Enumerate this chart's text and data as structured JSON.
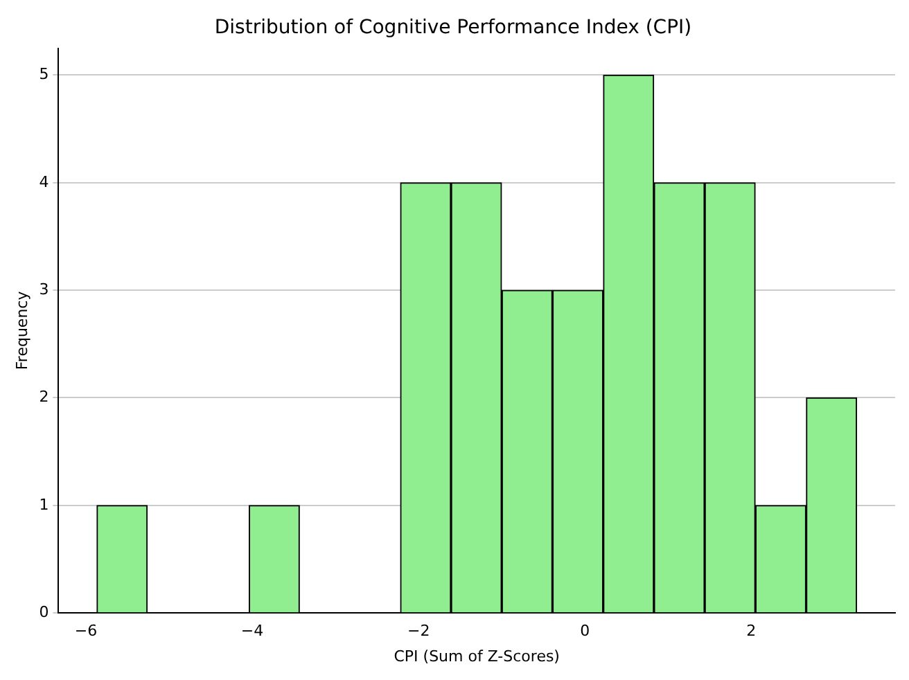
{
  "chart_data": {
    "type": "histogram",
    "title": "Distribution of Cognitive Performance Index (CPI)",
    "xlabel": "CPI (Sum of Z-Scores)",
    "ylabel": "Frequency",
    "bins": [
      -5.87,
      -5.26,
      -4.65,
      -4.04,
      -3.43,
      -2.83,
      -2.22,
      -1.61,
      -1.0,
      -0.39,
      0.22,
      0.83,
      1.44,
      2.05,
      2.66,
      3.27
    ],
    "values": [
      1,
      0,
      0,
      1,
      0,
      0,
      4,
      4,
      3,
      3,
      5,
      4,
      4,
      1,
      2
    ],
    "color": "#90ee90",
    "xlim": [
      -6.33,
      3.73
    ],
    "xticks": [
      {
        "value": -6,
        "label": "−6"
      },
      {
        "value": -4,
        "label": "−4"
      },
      {
        "value": -2,
        "label": "−2"
      },
      0,
      2
    ],
    "ylim": [
      0,
      5.25
    ],
    "yticks": [
      0,
      1,
      2,
      3,
      4,
      5
    ],
    "grid": "y",
    "legend": false
  }
}
